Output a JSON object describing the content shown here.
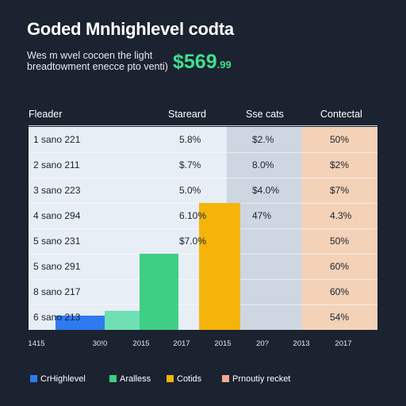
{
  "title": "Goded Mnhighlevel codta",
  "subtitle_lines": [
    "Wes m wvel cocoen the light",
    "breadtowment enecce pto venti)"
  ],
  "highlight": {
    "main": "$569",
    "cents": ".99"
  },
  "colors": {
    "background": "#1b2230",
    "blue": "#2e7af0",
    "green": "#3ecf84",
    "yellow": "#f5b40a",
    "peach": "#f3d2b8",
    "row_light": "#e8eef5",
    "row_mid": "#cdd6e1"
  },
  "table": {
    "headers": [
      "Fleader",
      "Stareard",
      "Sse cats",
      "Contectal"
    ],
    "rows": [
      {
        "label": "1 sano 221",
        "standard": "5.8%",
        "sse": "$2.%",
        "contectal": "50%"
      },
      {
        "label": "2 sano 211",
        "standard": "$.7%",
        "sse": "8.0%",
        "contectal": "$2%"
      },
      {
        "label": "3 sano 223",
        "standard": "5.0%",
        "sse": "$4.0%",
        "contectal": "$7%"
      },
      {
        "label": "4 sano 294",
        "standard": "6.10%",
        "sse": "47%",
        "contectal": "4.3%"
      },
      {
        "label": "5 sano 231",
        "standard": "$7.0%",
        "sse": "",
        "contectal": "50%"
      },
      {
        "label": "5 sano 291",
        "standard": "",
        "sse": "",
        "contectal": "60%"
      },
      {
        "label": "8 sano 217",
        "standard": "",
        "sse": "",
        "contectal": "60%"
      },
      {
        "label": "6 sano 213",
        "standard": "",
        "sse": "",
        "contectal": "54%"
      }
    ]
  },
  "chart_data": {
    "type": "bar",
    "x_tick_labels": [
      "1415",
      "30!0",
      "2015",
      "2017",
      "2015",
      "20?",
      "2013",
      "2017"
    ],
    "legend": [
      "CrHighlevel",
      "Aralless",
      "Cotids",
      "Prnoutiy recket"
    ],
    "ylim": [
      0,
      8
    ],
    "bars": [
      {
        "series": "CrHighlevel",
        "x_start": 1.0,
        "x_end": 2.2,
        "value": 0.55
      },
      {
        "series": "Aralless",
        "x_start": 2.2,
        "x_end": 3.05,
        "value": 0.75
      },
      {
        "series": "Aralless",
        "x_start": 3.05,
        "x_end": 4.0,
        "value": 3.0
      },
      {
        "series": "Cotids",
        "x_start": 4.5,
        "x_end": 5.5,
        "value": 5.0
      }
    ]
  }
}
